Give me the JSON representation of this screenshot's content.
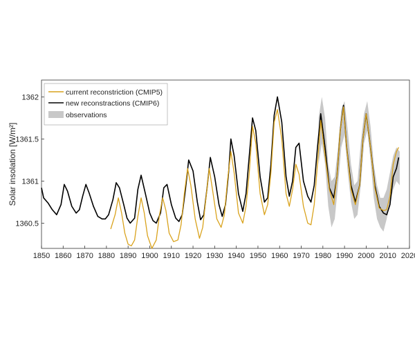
{
  "chart_data": {
    "type": "line",
    "xlabel": "",
    "ylabel": "Solar insolation [W/m²]",
    "xlim": [
      1850,
      2020
    ],
    "ylim": [
      1360.2,
      1362.2
    ],
    "xticks": [
      1850,
      1860,
      1870,
      1880,
      1890,
      1900,
      1910,
      1920,
      1930,
      1940,
      1950,
      1960,
      1970,
      1980,
      1990,
      2000,
      2010,
      2020
    ],
    "yticks": [
      1360.5,
      1361,
      1361.5,
      1362
    ],
    "xtick_labels": [
      "1850",
      "1860",
      "1870",
      "1880",
      "1890",
      "1900",
      "1910",
      "1920",
      "1930",
      "1940",
      "1950",
      "1960",
      "1970",
      "1980",
      "1990",
      "2000",
      "2010",
      "2020"
    ],
    "ytick_labels": [
      "1360.5",
      "1361",
      "1361.5",
      "1362"
    ],
    "grid": false,
    "legend_position": "top-left",
    "legend": [
      {
        "label": "current reconstriction (CMIP5)",
        "color": "#d9a21b",
        "kind": "line"
      },
      {
        "label": "new reconstractions (CMIP6)",
        "color": "#000000",
        "kind": "line"
      },
      {
        "label": "observations",
        "color": "#c8c8c8",
        "kind": "band"
      }
    ],
    "series": [
      {
        "name": "new reconstractions (CMIP6)",
        "color": "#000000",
        "x": [
          1850,
          1851,
          1853,
          1855,
          1857,
          1859,
          1860.5,
          1862,
          1864,
          1866,
          1867.5,
          1869,
          1870.5,
          1872,
          1874,
          1876,
          1878,
          1879.5,
          1881,
          1883,
          1884.5,
          1886,
          1888,
          1889.5,
          1891,
          1893,
          1894.5,
          1896,
          1898,
          1900,
          1901.5,
          1903,
          1905,
          1906.5,
          1908,
          1910,
          1912,
          1913.5,
          1915,
          1916.5,
          1918,
          1920,
          1922,
          1923.5,
          1925,
          1926.5,
          1928,
          1930,
          1932,
          1933.5,
          1935,
          1936.5,
          1937.5,
          1939,
          1941,
          1943,
          1944.5,
          1946,
          1947.5,
          1949,
          1951,
          1953,
          1954.5,
          1956,
          1957.5,
          1959,
          1961,
          1963,
          1964.5,
          1966,
          1967.5,
          1969,
          1971,
          1973,
          1974.5,
          1976,
          1977.5,
          1979,
          1981,
          1983,
          1985,
          1986.5,
          1988,
          1989.5,
          1991,
          1993,
          1995,
          1997,
          1998.5,
          2000,
          2002,
          2004,
          2006,
          2008,
          2009.5,
          2011,
          2012.5,
          2014,
          2015
        ],
        "y": [
          1360.92,
          1360.8,
          1360.74,
          1360.66,
          1360.6,
          1360.72,
          1360.96,
          1360.88,
          1360.7,
          1360.62,
          1360.66,
          1360.82,
          1360.96,
          1360.86,
          1360.7,
          1360.58,
          1360.55,
          1360.55,
          1360.6,
          1360.78,
          1360.98,
          1360.92,
          1360.72,
          1360.56,
          1360.5,
          1360.56,
          1360.9,
          1361.07,
          1360.85,
          1360.62,
          1360.53,
          1360.5,
          1360.62,
          1360.92,
          1360.96,
          1360.72,
          1360.56,
          1360.52,
          1360.6,
          1360.9,
          1361.25,
          1361.12,
          1360.75,
          1360.54,
          1360.6,
          1360.92,
          1361.28,
          1361.05,
          1360.72,
          1360.58,
          1360.72,
          1361.12,
          1361.5,
          1361.3,
          1360.85,
          1360.64,
          1360.85,
          1361.3,
          1361.75,
          1361.6,
          1361.05,
          1360.75,
          1360.8,
          1361.2,
          1361.78,
          1362.0,
          1361.7,
          1361.05,
          1360.82,
          1361.0,
          1361.4,
          1361.45,
          1361.0,
          1360.82,
          1360.75,
          1360.95,
          1361.4,
          1361.8,
          1361.4,
          1360.92,
          1360.8,
          1361.05,
          1361.6,
          1361.9,
          1361.4,
          1360.95,
          1360.75,
          1360.95,
          1361.5,
          1361.8,
          1361.4,
          1360.95,
          1360.7,
          1360.62,
          1360.6,
          1360.72,
          1361.05,
          1361.15,
          1361.28
        ]
      },
      {
        "name": "current reconstriction (CMIP5)",
        "color": "#d9a21b",
        "x": [
          1882,
          1884,
          1885.5,
          1887,
          1888.5,
          1890,
          1891.5,
          1893,
          1894.5,
          1896,
          1897.5,
          1899,
          1901,
          1903,
          1904.5,
          1906,
          1907.5,
          1909,
          1911,
          1913,
          1914.5,
          1916,
          1917.5,
          1919,
          1921,
          1923,
          1924.5,
          1926,
          1927.5,
          1929,
          1931,
          1933,
          1934.5,
          1936,
          1937.5,
          1939,
          1941,
          1943,
          1944.5,
          1946,
          1947.5,
          1949,
          1951,
          1953,
          1954.5,
          1956,
          1957.5,
          1959,
          1961,
          1963,
          1964.5,
          1966,
          1967.5,
          1969,
          1971,
          1973,
          1974.5,
          1976,
          1977.5,
          1979,
          1981,
          1983,
          1985,
          1986.5,
          1988,
          1989.5,
          1991,
          1993,
          1995,
          1997,
          1998.5,
          2000,
          2002,
          2004,
          2006,
          2008,
          2009.5,
          2011,
          2012.5,
          2014,
          2015
        ],
        "y": [
          1360.43,
          1360.6,
          1360.8,
          1360.62,
          1360.38,
          1360.25,
          1360.23,
          1360.3,
          1360.58,
          1360.8,
          1360.62,
          1360.35,
          1360.2,
          1360.3,
          1360.6,
          1360.8,
          1360.65,
          1360.38,
          1360.28,
          1360.3,
          1360.48,
          1360.85,
          1361.15,
          1360.95,
          1360.55,
          1360.32,
          1360.45,
          1360.8,
          1361.15,
          1360.9,
          1360.55,
          1360.45,
          1360.6,
          1361.02,
          1361.35,
          1361.1,
          1360.62,
          1360.5,
          1360.7,
          1361.1,
          1361.65,
          1361.45,
          1360.85,
          1360.6,
          1360.72,
          1361.1,
          1361.7,
          1361.85,
          1361.5,
          1360.85,
          1360.7,
          1360.9,
          1361.2,
          1361.08,
          1360.7,
          1360.5,
          1360.48,
          1360.72,
          1361.2,
          1361.72,
          1361.3,
          1360.9,
          1360.72,
          1361.05,
          1361.6,
          1361.88,
          1361.4,
          1360.9,
          1360.72,
          1360.95,
          1361.5,
          1361.8,
          1361.4,
          1360.92,
          1360.68,
          1360.65,
          1360.66,
          1360.82,
          1361.2,
          1361.35,
          1361.4
        ]
      }
    ],
    "observations": {
      "name": "observations",
      "color": "#c8c8c8",
      "x": [
        1978,
        1979.5,
        1981,
        1982.5,
        1984,
        1985.5,
        1987,
        1988.5,
        1990,
        1991.5,
        1993,
        1994.5,
        1996,
        1997.5,
        1999,
        2000.5,
        2002,
        2003.5,
        2005,
        2006.5,
        2008,
        2009.5,
        2011,
        2012.5,
        2014,
        2015.5
      ],
      "lower": [
        1361.2,
        1361.45,
        1361.2,
        1360.7,
        1360.45,
        1360.55,
        1360.95,
        1361.4,
        1361.55,
        1361.1,
        1360.75,
        1360.55,
        1360.6,
        1360.95,
        1361.45,
        1361.6,
        1361.25,
        1360.8,
        1360.55,
        1360.45,
        1360.4,
        1360.55,
        1360.75,
        1360.9,
        1361.0,
        1360.95
      ],
      "upper": [
        1361.75,
        1362.0,
        1361.75,
        1361.2,
        1361.0,
        1361.05,
        1361.4,
        1361.85,
        1361.95,
        1361.6,
        1361.2,
        1360.95,
        1361.0,
        1361.45,
        1361.8,
        1361.95,
        1361.65,
        1361.2,
        1360.95,
        1360.8,
        1360.8,
        1360.9,
        1361.1,
        1361.3,
        1361.4,
        1361.35
      ]
    }
  }
}
